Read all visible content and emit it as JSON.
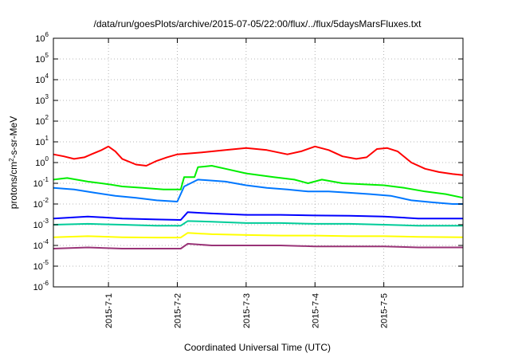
{
  "chart_data": {
    "type": "line",
    "title": "/data/run/goesPlots/archive/2015-07-05/22:00/flux/../flux/5daysMarsFluxes.txt",
    "xlabel": "Coordinated Universal Time (UTC)",
    "ylabel": "protons/cm²-s-sr-MeV",
    "yscale": "log",
    "ylim": [
      1e-06,
      1000000.0
    ],
    "xlim": [
      0,
      5.95
    ],
    "x_ticks": [
      {
        "x": 0.8,
        "label": "2015-7-1"
      },
      {
        "x": 1.8,
        "label": "2015-7-2"
      },
      {
        "x": 2.8,
        "label": "2015-7-3"
      },
      {
        "x": 3.8,
        "label": "2015-7-4"
      },
      {
        "x": 4.8,
        "label": "2015-7-5"
      }
    ],
    "y_ticks": [
      {
        "exp": -6,
        "base": "10",
        "sup": "-6"
      },
      {
        "exp": -5,
        "base": "10",
        "sup": "-5"
      },
      {
        "exp": -4,
        "base": "10",
        "sup": "-4"
      },
      {
        "exp": -3,
        "base": "10",
        "sup": "-3"
      },
      {
        "exp": -2,
        "base": "10",
        "sup": "-2"
      },
      {
        "exp": -1,
        "base": "10",
        "sup": "-1"
      },
      {
        "exp": 0,
        "base": "10",
        "sup": "0"
      },
      {
        "exp": 1,
        "base": "10",
        "sup": "1"
      },
      {
        "exp": 2,
        "base": "10",
        "sup": "2"
      },
      {
        "exp": 3,
        "base": "10",
        "sup": "3"
      },
      {
        "exp": 4,
        "base": "10",
        "sup": "4"
      },
      {
        "exp": 5,
        "base": "10",
        "sup": "5"
      },
      {
        "exp": 6,
        "base": "10",
        "sup": "6"
      }
    ],
    "grid": true,
    "series": [
      {
        "color": "#ff0000",
        "x": [
          0,
          0.15,
          0.3,
          0.45,
          0.55,
          0.7,
          0.8,
          0.9,
          1.0,
          1.2,
          1.35,
          1.5,
          1.65,
          1.8,
          2.0,
          2.2,
          2.5,
          2.8,
          3.1,
          3.4,
          3.6,
          3.8,
          4.0,
          4.2,
          4.4,
          4.55,
          4.7,
          4.85,
          5.0,
          5.2,
          5.4,
          5.6,
          5.8,
          5.95
        ],
        "y": [
          2.5,
          2.0,
          1.5,
          1.8,
          2.5,
          4.0,
          6.0,
          3.5,
          1.5,
          0.8,
          0.7,
          1.2,
          1.8,
          2.5,
          2.8,
          3.2,
          4.0,
          5.0,
          4.0,
          2.5,
          3.5,
          6.0,
          4.0,
          2.0,
          1.5,
          1.8,
          4.5,
          5.0,
          3.5,
          1.0,
          0.5,
          0.35,
          0.28,
          0.25
        ]
      },
      {
        "color": "#00ee00",
        "x": [
          0,
          0.2,
          0.5,
          0.8,
          1.0,
          1.3,
          1.6,
          1.85,
          1.9,
          2.05,
          2.1,
          2.3,
          2.5,
          2.8,
          3.2,
          3.5,
          3.7,
          3.9,
          4.2,
          4.5,
          4.8,
          5.1,
          5.4,
          5.7,
          5.95
        ],
        "y": [
          0.15,
          0.18,
          0.12,
          0.09,
          0.07,
          0.06,
          0.05,
          0.05,
          0.2,
          0.2,
          0.6,
          0.7,
          0.5,
          0.3,
          0.2,
          0.15,
          0.1,
          0.15,
          0.1,
          0.09,
          0.08,
          0.06,
          0.04,
          0.03,
          0.02
        ]
      },
      {
        "color": "#0077ff",
        "x": [
          0,
          0.3,
          0.6,
          0.9,
          1.2,
          1.5,
          1.8,
          1.9,
          2.1,
          2.5,
          2.8,
          3.1,
          3.4,
          3.7,
          4.0,
          4.3,
          4.6,
          4.9,
          5.2,
          5.5,
          5.8,
          5.95
        ],
        "y": [
          0.06,
          0.05,
          0.035,
          0.025,
          0.02,
          0.015,
          0.013,
          0.07,
          0.15,
          0.12,
          0.08,
          0.06,
          0.05,
          0.04,
          0.04,
          0.035,
          0.03,
          0.025,
          0.015,
          0.012,
          0.01,
          0.01
        ]
      },
      {
        "color": "#0000ff",
        "x": [
          0,
          0.5,
          1.0,
          1.5,
          1.85,
          1.95,
          2.3,
          2.8,
          3.3,
          3.8,
          4.3,
          4.8,
          5.3,
          5.95
        ],
        "y": [
          0.002,
          0.0025,
          0.002,
          0.0018,
          0.0017,
          0.004,
          0.0035,
          0.003,
          0.003,
          0.0028,
          0.0027,
          0.0025,
          0.002,
          0.002
        ]
      },
      {
        "color": "#00cc99",
        "x": [
          0,
          0.5,
          1.0,
          1.5,
          1.85,
          1.95,
          2.3,
          2.8,
          3.3,
          3.8,
          4.3,
          4.8,
          5.3,
          5.95
        ],
        "y": [
          0.001,
          0.0011,
          0.001,
          0.0009,
          0.0009,
          0.0015,
          0.0014,
          0.0012,
          0.0012,
          0.0011,
          0.0011,
          0.001,
          0.0009,
          0.0009
        ]
      },
      {
        "color": "#ffff00",
        "x": [
          0,
          0.5,
          1.0,
          1.5,
          1.85,
          1.95,
          2.3,
          2.8,
          3.3,
          3.8,
          4.3,
          4.8,
          5.3,
          5.95
        ],
        "y": [
          0.00025,
          0.00028,
          0.00025,
          0.00024,
          0.00024,
          0.0004,
          0.00035,
          0.00032,
          0.0003,
          0.0003,
          0.00028,
          0.00028,
          0.00026,
          0.00025
        ]
      },
      {
        "color": "#993377",
        "x": [
          0,
          0.5,
          1.0,
          1.5,
          1.85,
          1.95,
          2.3,
          2.8,
          3.3,
          3.8,
          4.3,
          4.8,
          5.3,
          5.95
        ],
        "y": [
          7e-05,
          8e-05,
          7e-05,
          7e-05,
          7e-05,
          0.00012,
          0.0001,
          0.0001,
          0.0001,
          9e-05,
          9e-05,
          9e-05,
          8e-05,
          8e-05
        ]
      }
    ]
  }
}
